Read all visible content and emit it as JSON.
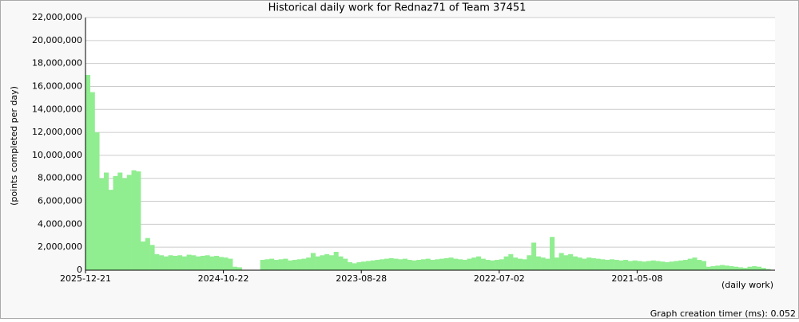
{
  "chart_data": {
    "type": "bar",
    "title": "Historical daily work for Rednaz71 of Team 37451",
    "y_label": "(points completed per day)",
    "x_label": "(daily work)",
    "footer": "Graph creation timer (ms): 0.052",
    "color": "#90ee90",
    "grid": true,
    "ylim": [
      0,
      22000000
    ],
    "yticks": [
      0,
      {
        "value": 2000000,
        "label": "2,000,000"
      },
      {
        "value": 4000000,
        "label": "4,000,000"
      },
      {
        "value": 6000000,
        "label": "6,000,000"
      },
      {
        "value": 8000000,
        "label": "8,000,000"
      },
      {
        "value": 10000000,
        "label": "10,000,000"
      },
      {
        "value": 12000000,
        "label": "12,000,000"
      },
      {
        "value": 14000000,
        "label": "14,000,000"
      },
      {
        "value": 16000000,
        "label": "16,000,000"
      },
      {
        "value": 18000000,
        "label": "18,000,000"
      },
      {
        "value": 20000000,
        "label": "20,000,000"
      },
      {
        "value": 22000000,
        "label": "22,000,000"
      }
    ],
    "categories": [
      "2025-12-21",
      null,
      null,
      null,
      null,
      null,
      null,
      null,
      null,
      null,
      null,
      null,
      null,
      null,
      null,
      null,
      null,
      null,
      null,
      null,
      null,
      null,
      null,
      null,
      null,
      null,
      null,
      null,
      null,
      null,
      "2024-10-22",
      null,
      null,
      null,
      null,
      null,
      null,
      null,
      null,
      null,
      null,
      null,
      null,
      null,
      null,
      null,
      null,
      null,
      null,
      null,
      null,
      null,
      null,
      null,
      null,
      null,
      null,
      null,
      null,
      null,
      "2023-08-28",
      null,
      null,
      null,
      null,
      null,
      null,
      null,
      null,
      null,
      null,
      null,
      null,
      null,
      null,
      null,
      null,
      null,
      null,
      null,
      null,
      null,
      null,
      null,
      null,
      null,
      null,
      null,
      null,
      null,
      "2022-07-02",
      null,
      null,
      null,
      null,
      null,
      null,
      null,
      null,
      null,
      null,
      null,
      null,
      null,
      null,
      null,
      null,
      null,
      null,
      null,
      null,
      null,
      null,
      null,
      null,
      null,
      null,
      null,
      null,
      null,
      "2021-05-08",
      null,
      null,
      null,
      null,
      null,
      null,
      null,
      null,
      null,
      null,
      null,
      null,
      null,
      null,
      null,
      null,
      null,
      null,
      null,
      null,
      null,
      null,
      null,
      null,
      null,
      null,
      null,
      null,
      null
    ],
    "values": [
      17000000,
      15500000,
      12000000,
      8000000,
      8500000,
      7000000,
      8200000,
      8500000,
      8000000,
      8300000,
      8700000,
      8600000,
      2500000,
      2800000,
      2200000,
      1400000,
      1300000,
      1200000,
      1300000,
      1250000,
      1300000,
      1200000,
      1350000,
      1300000,
      1200000,
      1250000,
      1300000,
      1200000,
      1250000,
      1150000,
      1100000,
      1000000,
      300000,
      250000,
      0,
      0,
      0,
      0,
      900000,
      950000,
      1000000,
      900000,
      950000,
      1000000,
      850000,
      900000,
      950000,
      1000000,
      1100000,
      1500000,
      1200000,
      1300000,
      1400000,
      1300000,
      1600000,
      1200000,
      1000000,
      700000,
      600000,
      700000,
      750000,
      800000,
      850000,
      900000,
      950000,
      1000000,
      1050000,
      1000000,
      950000,
      1000000,
      900000,
      850000,
      900000,
      950000,
      1000000,
      900000,
      950000,
      1000000,
      1050000,
      1100000,
      1000000,
      950000,
      900000,
      1000000,
      1100000,
      1200000,
      1000000,
      900000,
      850000,
      900000,
      950000,
      1200000,
      1400000,
      1100000,
      1000000,
      950000,
      1300000,
      2400000,
      1200000,
      1100000,
      1000000,
      2900000,
      1100000,
      1500000,
      1300000,
      1400000,
      1200000,
      1100000,
      1000000,
      1100000,
      1050000,
      1000000,
      950000,
      900000,
      950000,
      900000,
      850000,
      900000,
      800000,
      850000,
      800000,
      750000,
      800000,
      850000,
      800000,
      750000,
      700000,
      750000,
      800000,
      850000,
      900000,
      1000000,
      1100000,
      900000,
      800000,
      300000,
      350000,
      400000,
      450000,
      400000,
      350000,
      300000,
      250000,
      200000,
      300000,
      350000,
      300000,
      200000,
      100000,
      0
    ]
  }
}
